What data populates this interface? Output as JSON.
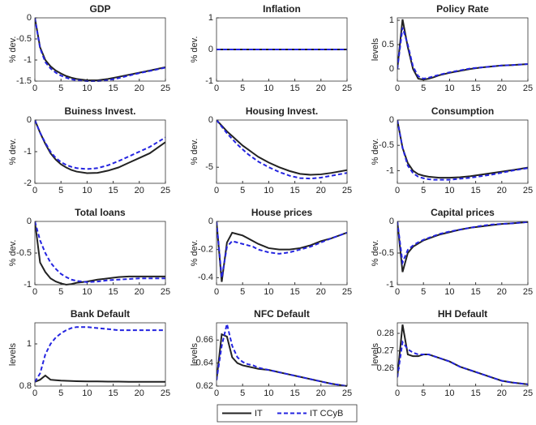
{
  "chart_data": [
    {
      "type": "line",
      "title": "GDP",
      "ylabel": "% dev.",
      "xlim": [
        0,
        25
      ],
      "xticks": [
        0,
        5,
        10,
        15,
        20,
        25
      ],
      "ylim": [
        -1.5,
        0
      ],
      "yticks": [
        -1.5,
        -1,
        -0.5,
        0
      ],
      "x": [
        0,
        1,
        2,
        3,
        4,
        5,
        6,
        7,
        8,
        10,
        12,
        14,
        16,
        18,
        20,
        22,
        25
      ],
      "series": [
        {
          "name": "IT",
          "color": "#222222",
          "dashed": false,
          "values": [
            0,
            -0.7,
            -1.0,
            -1.15,
            -1.25,
            -1.32,
            -1.38,
            -1.42,
            -1.45,
            -1.48,
            -1.48,
            -1.45,
            -1.4,
            -1.35,
            -1.3,
            -1.25,
            -1.17
          ]
        },
        {
          "name": "IT CCyB",
          "color": "#2424e0",
          "dashed": true,
          "values": [
            0,
            -0.72,
            -1.05,
            -1.2,
            -1.3,
            -1.37,
            -1.42,
            -1.46,
            -1.48,
            -1.5,
            -1.5,
            -1.48,
            -1.43,
            -1.37,
            -1.31,
            -1.26,
            -1.18
          ]
        }
      ]
    },
    {
      "type": "line",
      "title": "Inflation",
      "ylabel": "% dev.",
      "xlim": [
        0,
        25
      ],
      "xticks": [
        0,
        5,
        10,
        15,
        20,
        25
      ],
      "ylim": [
        -1,
        1
      ],
      "yticks": [
        -1,
        0,
        1
      ],
      "x": [
        0,
        1,
        2,
        3,
        4,
        5,
        6,
        7,
        8,
        10,
        12,
        14,
        16,
        18,
        20,
        22,
        25
      ],
      "series": [
        {
          "name": "IT",
          "color": "#222222",
          "dashed": false,
          "values": [
            0,
            0,
            0,
            0,
            0,
            0,
            0,
            0,
            0,
            0,
            0,
            0,
            0,
            0,
            0,
            0,
            0
          ]
        },
        {
          "name": "IT CCyB",
          "color": "#2424e0",
          "dashed": true,
          "values": [
            0,
            0,
            0,
            0,
            0,
            0,
            0,
            0,
            0,
            0,
            0,
            0,
            0,
            0,
            0,
            0,
            0
          ]
        }
      ]
    },
    {
      "type": "line",
      "title": "Policy Rate",
      "ylabel": "levels",
      "xlim": [
        0,
        25
      ],
      "xticks": [
        0,
        5,
        10,
        15,
        20,
        25
      ],
      "ylim": [
        -0.25,
        1.05
      ],
      "yticks": [
        0,
        0.5,
        1
      ],
      "x": [
        0,
        1,
        2,
        3,
        4,
        5,
        6,
        7,
        8,
        10,
        12,
        14,
        16,
        18,
        20,
        22,
        25
      ],
      "series": [
        {
          "name": "IT",
          "color": "#222222",
          "dashed": false,
          "values": [
            0,
            1.02,
            0.45,
            0.0,
            -0.2,
            -0.22,
            -0.2,
            -0.17,
            -0.13,
            -0.08,
            -0.04,
            0,
            0.03,
            0.05,
            0.07,
            0.08,
            0.1
          ]
        },
        {
          "name": "IT CCyB",
          "color": "#2424e0",
          "dashed": true,
          "values": [
            0,
            0.85,
            0.5,
            0.05,
            -0.15,
            -0.2,
            -0.18,
            -0.15,
            -0.12,
            -0.07,
            -0.03,
            0.01,
            0.03,
            0.05,
            0.07,
            0.08,
            0.1
          ]
        }
      ]
    },
    {
      "type": "line",
      "title": "Buiness Invest.",
      "ylabel": "% dev.",
      "xlim": [
        0,
        25
      ],
      "xticks": [
        0,
        5,
        10,
        15,
        20,
        25
      ],
      "ylim": [
        -2,
        0
      ],
      "yticks": [
        -2,
        -1,
        0
      ],
      "x": [
        0,
        1,
        2,
        3,
        4,
        5,
        6,
        7,
        8,
        10,
        12,
        14,
        16,
        18,
        20,
        22,
        25
      ],
      "series": [
        {
          "name": "IT",
          "color": "#222222",
          "dashed": false,
          "values": [
            0,
            -0.4,
            -0.75,
            -1.05,
            -1.25,
            -1.4,
            -1.5,
            -1.58,
            -1.63,
            -1.68,
            -1.67,
            -1.6,
            -1.5,
            -1.35,
            -1.2,
            -1.05,
            -0.7
          ]
        },
        {
          "name": "IT CCyB",
          "color": "#2424e0",
          "dashed": true,
          "values": [
            0,
            -0.4,
            -0.72,
            -1.0,
            -1.2,
            -1.33,
            -1.42,
            -1.48,
            -1.52,
            -1.55,
            -1.52,
            -1.43,
            -1.3,
            -1.15,
            -1.0,
            -0.85,
            -0.55
          ]
        }
      ]
    },
    {
      "type": "line",
      "title": "Housing Invest.",
      "ylabel": "% dev.",
      "xlim": [
        0,
        25
      ],
      "xticks": [
        0,
        5,
        10,
        15,
        20,
        25
      ],
      "ylim": [
        -6.7,
        0
      ],
      "yticks": [
        -5,
        0
      ],
      "x": [
        0,
        1,
        2,
        3,
        4,
        5,
        6,
        7,
        8,
        10,
        12,
        14,
        16,
        18,
        20,
        22,
        25
      ],
      "series": [
        {
          "name": "IT",
          "color": "#222222",
          "dashed": false,
          "values": [
            0,
            -0.6,
            -1.2,
            -1.7,
            -2.2,
            -2.7,
            -3.1,
            -3.5,
            -3.9,
            -4.5,
            -5.0,
            -5.4,
            -5.7,
            -5.8,
            -5.75,
            -5.6,
            -5.3
          ]
        },
        {
          "name": "IT CCyB",
          "color": "#2424e0",
          "dashed": true,
          "values": [
            0,
            -0.7,
            -1.4,
            -2.0,
            -2.6,
            -3.1,
            -3.6,
            -4.0,
            -4.4,
            -5.0,
            -5.5,
            -5.9,
            -6.15,
            -6.2,
            -6.1,
            -5.9,
            -5.6
          ]
        }
      ]
    },
    {
      "type": "line",
      "title": "Consumption",
      "ylabel": "% dev.",
      "xlim": [
        0,
        25
      ],
      "xticks": [
        0,
        5,
        10,
        15,
        20,
        25
      ],
      "ylim": [
        -1.25,
        0
      ],
      "yticks": [
        -1,
        -0.5,
        0
      ],
      "x": [
        0,
        1,
        2,
        3,
        4,
        5,
        6,
        7,
        8,
        10,
        12,
        14,
        16,
        18,
        20,
        22,
        25
      ],
      "series": [
        {
          "name": "IT",
          "color": "#222222",
          "dashed": false,
          "values": [
            0,
            -0.55,
            -0.85,
            -1.0,
            -1.07,
            -1.1,
            -1.12,
            -1.13,
            -1.14,
            -1.14,
            -1.13,
            -1.11,
            -1.08,
            -1.05,
            -1.02,
            -0.99,
            -0.94
          ]
        },
        {
          "name": "IT CCyB",
          "color": "#2424e0",
          "dashed": true,
          "values": [
            0,
            -0.55,
            -0.9,
            -1.05,
            -1.12,
            -1.15,
            -1.17,
            -1.18,
            -1.18,
            -1.18,
            -1.16,
            -1.14,
            -1.11,
            -1.08,
            -1.04,
            -1.0,
            -0.95
          ]
        }
      ]
    },
    {
      "type": "line",
      "title": "Total loans",
      "ylabel": "% dev.",
      "xlim": [
        0,
        25
      ],
      "xticks": [
        0,
        5,
        10,
        15,
        20,
        25
      ],
      "ylim": [
        -1,
        0
      ],
      "yticks": [
        -1,
        -0.5,
        0
      ],
      "x": [
        0,
        1,
        2,
        3,
        4,
        5,
        6,
        7,
        8,
        10,
        12,
        14,
        16,
        18,
        20,
        22,
        25
      ],
      "series": [
        {
          "name": "IT",
          "color": "#222222",
          "dashed": false,
          "values": [
            0,
            -0.65,
            -0.8,
            -0.9,
            -0.95,
            -0.98,
            -1.0,
            -0.99,
            -0.97,
            -0.95,
            -0.92,
            -0.9,
            -0.88,
            -0.87,
            -0.87,
            -0.87,
            -0.87
          ]
        },
        {
          "name": "IT CCyB",
          "color": "#2424e0",
          "dashed": true,
          "values": [
            0,
            -0.3,
            -0.5,
            -0.65,
            -0.75,
            -0.83,
            -0.88,
            -0.92,
            -0.94,
            -0.96,
            -0.95,
            -0.93,
            -0.92,
            -0.91,
            -0.9,
            -0.9,
            -0.9
          ]
        }
      ]
    },
    {
      "type": "line",
      "title": "House prices",
      "ylabel": "% dev.",
      "xlim": [
        0,
        25
      ],
      "xticks": [
        0,
        5,
        10,
        15,
        20,
        25
      ],
      "ylim": [
        -0.45,
        0
      ],
      "yticks": [
        -0.4,
        -0.2,
        0
      ],
      "x": [
        0,
        1,
        2,
        3,
        4,
        5,
        6,
        7,
        8,
        10,
        12,
        14,
        16,
        18,
        20,
        22,
        25
      ],
      "series": [
        {
          "name": "IT",
          "color": "#222222",
          "dashed": false,
          "values": [
            0,
            -0.43,
            -0.15,
            -0.08,
            -0.09,
            -0.1,
            -0.12,
            -0.14,
            -0.16,
            -0.19,
            -0.2,
            -0.2,
            -0.19,
            -0.17,
            -0.14,
            -0.12,
            -0.08
          ]
        },
        {
          "name": "IT CCyB",
          "color": "#2424e0",
          "dashed": true,
          "values": [
            0,
            -0.4,
            -0.18,
            -0.14,
            -0.15,
            -0.16,
            -0.17,
            -0.18,
            -0.2,
            -0.22,
            -0.23,
            -0.22,
            -0.2,
            -0.18,
            -0.15,
            -0.12,
            -0.08
          ]
        }
      ]
    },
    {
      "type": "line",
      "title": "Capital prices",
      "ylabel": "% dev.",
      "xlim": [
        0,
        25
      ],
      "xticks": [
        0,
        5,
        10,
        15,
        20,
        25
      ],
      "ylim": [
        -1,
        0
      ],
      "yticks": [
        -1,
        -0.5,
        0
      ],
      "x": [
        0,
        1,
        2,
        3,
        4,
        5,
        6,
        7,
        8,
        10,
        12,
        14,
        16,
        18,
        20,
        22,
        25
      ],
      "series": [
        {
          "name": "IT",
          "color": "#222222",
          "dashed": false,
          "values": [
            0,
            -0.8,
            -0.5,
            -0.4,
            -0.35,
            -0.3,
            -0.27,
            -0.24,
            -0.21,
            -0.17,
            -0.13,
            -0.1,
            -0.08,
            -0.06,
            -0.04,
            -0.03,
            -0.01
          ]
        },
        {
          "name": "IT CCyB",
          "color": "#2424e0",
          "dashed": true,
          "values": [
            0,
            -0.65,
            -0.45,
            -0.38,
            -0.33,
            -0.29,
            -0.26,
            -0.23,
            -0.2,
            -0.16,
            -0.13,
            -0.1,
            -0.07,
            -0.05,
            -0.04,
            -0.03,
            -0.01
          ]
        }
      ]
    },
    {
      "type": "line",
      "title": "Bank Default",
      "ylabel": "levels",
      "xlim": [
        0,
        25
      ],
      "xticks": [
        0,
        5,
        10,
        15,
        20,
        25
      ],
      "ylim": [
        0.8,
        1.1
      ],
      "yticks": [
        0.8,
        1
      ],
      "x": [
        0,
        1,
        2,
        3,
        4,
        5,
        6,
        7,
        8,
        10,
        12,
        14,
        16,
        18,
        20,
        22,
        25
      ],
      "series": [
        {
          "name": "IT",
          "color": "#222222",
          "dashed": false,
          "values": [
            0.82,
            0.83,
            0.85,
            0.83,
            0.828,
            0.826,
            0.825,
            0.824,
            0.823,
            0.822,
            0.822,
            0.821,
            0.821,
            0.82,
            0.82,
            0.82,
            0.82
          ]
        },
        {
          "name": "IT CCyB",
          "color": "#2424e0",
          "dashed": true,
          "values": [
            0.82,
            0.86,
            0.95,
            1.0,
            1.03,
            1.05,
            1.065,
            1.075,
            1.08,
            1.08,
            1.075,
            1.07,
            1.065,
            1.065,
            1.065,
            1.065,
            1.065
          ]
        }
      ]
    },
    {
      "type": "line",
      "title": "NFC Default",
      "ylabel": "levels",
      "xlim": [
        0,
        25
      ],
      "xticks": [
        0,
        5,
        10,
        15,
        20,
        25
      ],
      "ylim": [
        0.62,
        0.675
      ],
      "yticks": [
        0.62,
        0.64,
        0.66
      ],
      "x": [
        0,
        1,
        2,
        3,
        4,
        5,
        6,
        7,
        8,
        10,
        12,
        14,
        16,
        18,
        20,
        22,
        25
      ],
      "series": [
        {
          "name": "IT",
          "color": "#222222",
          "dashed": false,
          "values": [
            0.625,
            0.665,
            0.663,
            0.645,
            0.64,
            0.638,
            0.637,
            0.636,
            0.635,
            0.634,
            0.632,
            0.63,
            0.628,
            0.626,
            0.624,
            0.622,
            0.62
          ]
        },
        {
          "name": "IT CCyB",
          "color": "#2424e0",
          "dashed": true,
          "values": [
            0.625,
            0.655,
            0.674,
            0.655,
            0.645,
            0.641,
            0.639,
            0.638,
            0.636,
            0.634,
            0.632,
            0.63,
            0.628,
            0.626,
            0.624,
            0.622,
            0.62
          ]
        }
      ]
    },
    {
      "type": "line",
      "title": "HH Default",
      "ylabel": "levels",
      "xlim": [
        0,
        25
      ],
      "xticks": [
        0,
        5,
        10,
        15,
        20,
        25
      ],
      "ylim": [
        0.25,
        0.286
      ],
      "yticks": [
        0.26,
        0.27,
        0.28
      ],
      "x": [
        0,
        1,
        2,
        3,
        4,
        5,
        6,
        7,
        8,
        10,
        12,
        14,
        16,
        18,
        20,
        22,
        25
      ],
      "series": [
        {
          "name": "IT",
          "color": "#222222",
          "dashed": false,
          "values": [
            0.255,
            0.285,
            0.268,
            0.267,
            0.267,
            0.268,
            0.268,
            0.267,
            0.266,
            0.264,
            0.261,
            0.259,
            0.257,
            0.255,
            0.253,
            0.252,
            0.251
          ]
        },
        {
          "name": "IT CCyB",
          "color": "#2424e0",
          "dashed": true,
          "values": [
            0.255,
            0.275,
            0.271,
            0.269,
            0.268,
            0.268,
            0.268,
            0.267,
            0.266,
            0.264,
            0.261,
            0.259,
            0.257,
            0.255,
            0.253,
            0.252,
            0.251
          ]
        }
      ]
    }
  ]
}
